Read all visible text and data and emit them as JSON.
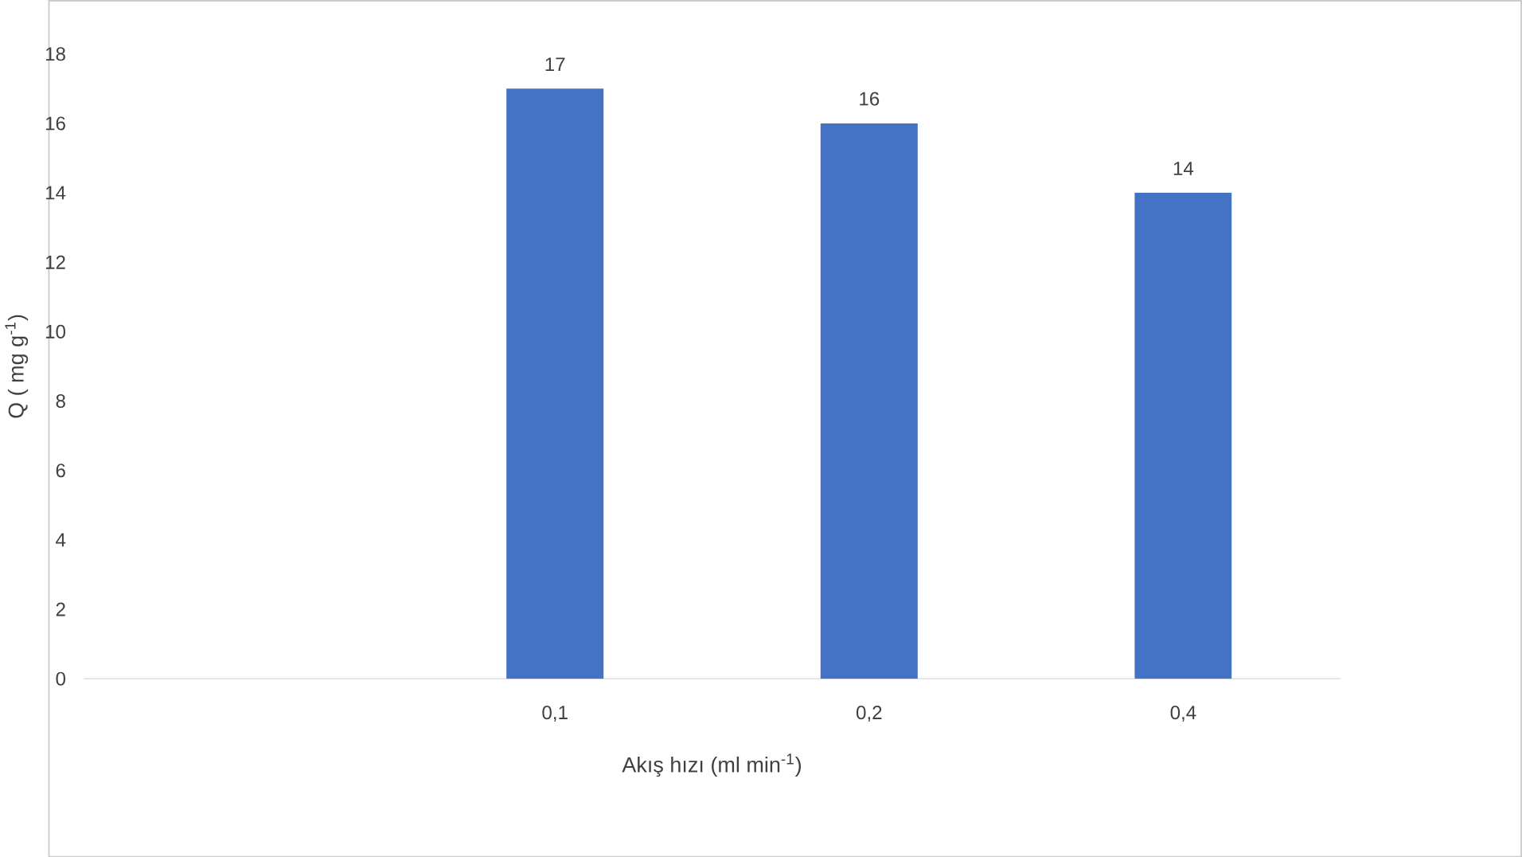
{
  "chart_data": {
    "type": "bar",
    "xlabel": "Akış hızı (ml min$^{-1}$)",
    "ylabel": "Q ( mg g$^{-1}$)",
    "categories": [
      null,
      "0,1",
      "0,2",
      "0,4"
    ],
    "values": [
      null,
      17,
      16,
      14
    ],
    "color": "#4472c4",
    "ylim": [
      0,
      18
    ],
    "yticks": [
      0,
      2,
      4,
      6,
      8,
      10,
      12,
      14,
      16,
      18
    ],
    "data_labels": true
  }
}
